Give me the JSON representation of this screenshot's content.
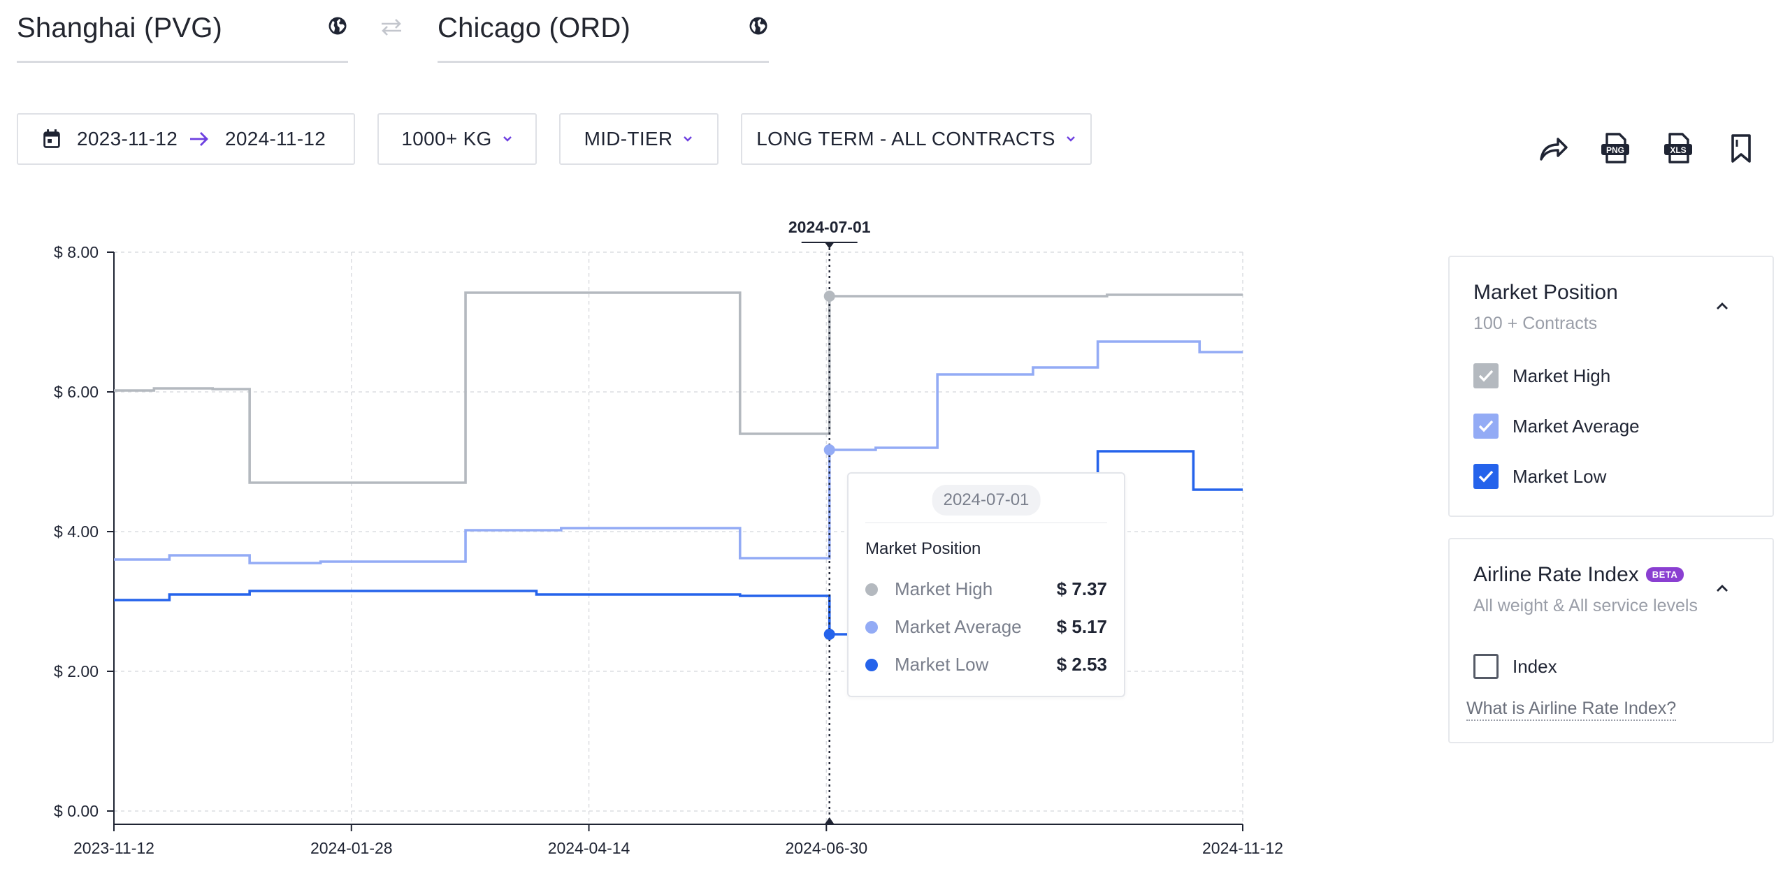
{
  "route": {
    "origin": "Shanghai (PVG)",
    "destination": "Chicago (ORD)"
  },
  "filters": {
    "date_from": "2023-11-12",
    "date_to": "2024-11-12",
    "weight": "1000+ KG",
    "tier": "MID-TIER",
    "contract": "LONG TERM - ALL CONTRACTS"
  },
  "toolbar": {
    "share_icon": "share-icon",
    "png_icon": "png-export-icon",
    "png_label": "PNG",
    "xls_icon": "xls-export-icon",
    "xls_label": "XLS",
    "bookmark_icon": "bookmark-icon"
  },
  "tooltip": {
    "date": "2024-07-01",
    "title": "Market Position",
    "rows": [
      {
        "name": "Market High",
        "value": "$ 7.37",
        "color": "#b4b9bf"
      },
      {
        "name": "Market Average",
        "value": "$ 5.17",
        "color": "#93abf5"
      },
      {
        "name": "Market Low",
        "value": "$ 2.53",
        "color": "#2563eb"
      }
    ]
  },
  "panels": {
    "market": {
      "title": "Market Position",
      "subtitle": "100 + Contracts",
      "items": [
        {
          "label": "Market High",
          "checked": true,
          "color": "#b4b9bf"
        },
        {
          "label": "Market Average",
          "checked": true,
          "color": "#93abf5"
        },
        {
          "label": "Market Low",
          "checked": true,
          "color": "#2563eb"
        }
      ]
    },
    "airline": {
      "title": "Airline Rate Index",
      "badge": "BETA",
      "subtitle": "All weight & All service levels",
      "items": [
        {
          "label": "Index",
          "checked": false
        }
      ],
      "link": "What is Airline Rate Index?"
    }
  },
  "chart_data": {
    "type": "line",
    "step": true,
    "x_axis": "date",
    "xlim": [
      "2023-11-12",
      "2024-11-12"
    ],
    "ylim": [
      0,
      8
    ],
    "grid": true,
    "x_ticks": [
      "2023-11-12",
      "2024-01-28",
      "2024-04-14",
      "2024-06-30",
      "2024-11-12"
    ],
    "y_ticks": [
      "$ 0.00",
      "$ 2.00",
      "$ 4.00",
      "$ 6.00",
      "$ 8.00"
    ],
    "crosshair_label": "2024-07-01",
    "series": [
      {
        "name": "Market High",
        "color": "#b4b9bf",
        "points": [
          [
            "2023-11-12",
            6.02
          ],
          [
            "2023-11-25",
            6.05
          ],
          [
            "2023-12-14",
            6.04
          ],
          [
            "2023-12-26",
            4.7
          ],
          [
            "2024-03-05",
            7.42
          ],
          [
            "2024-06-02",
            5.4
          ],
          [
            "2024-07-01",
            7.37
          ],
          [
            "2024-09-29",
            7.39
          ]
        ]
      },
      {
        "name": "Market Average",
        "color": "#93abf5",
        "points": [
          [
            "2023-11-12",
            3.6
          ],
          [
            "2023-11-30",
            3.66
          ],
          [
            "2023-12-26",
            3.55
          ],
          [
            "2024-01-18",
            3.57
          ],
          [
            "2024-03-05",
            4.02
          ],
          [
            "2024-04-05",
            4.05
          ],
          [
            "2024-06-02",
            3.62
          ],
          [
            "2024-07-01",
            5.17
          ],
          [
            "2024-07-16",
            5.2
          ],
          [
            "2024-08-05",
            6.25
          ],
          [
            "2024-09-05",
            6.35
          ],
          [
            "2024-09-26",
            6.72
          ],
          [
            "2024-10-29",
            6.57
          ]
        ]
      },
      {
        "name": "Market Low",
        "color": "#2563eb",
        "points": [
          [
            "2023-11-12",
            3.02
          ],
          [
            "2023-11-30",
            3.1
          ],
          [
            "2023-12-26",
            3.15
          ],
          [
            "2024-03-28",
            3.1
          ],
          [
            "2024-06-02",
            3.08
          ],
          [
            "2024-07-01",
            2.53
          ],
          [
            "2024-09-26",
            5.15
          ],
          [
            "2024-10-27",
            4.6
          ]
        ]
      }
    ]
  }
}
